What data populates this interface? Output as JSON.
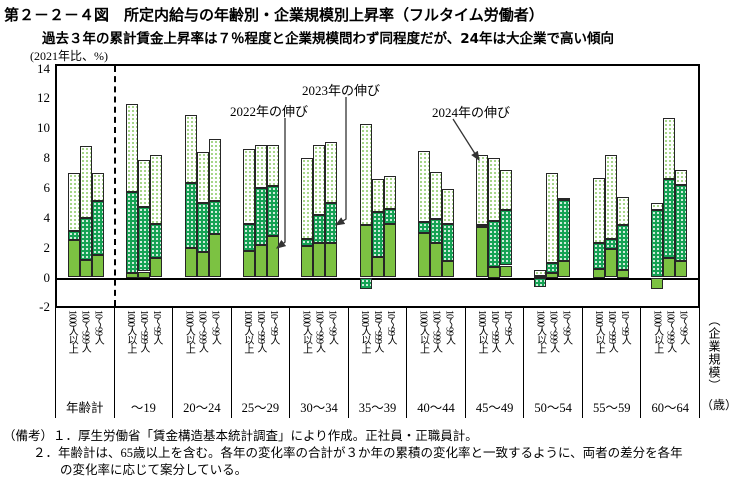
{
  "figure": {
    "title": "第２－２－４図　所定内給与の年齢別・企業規模別上昇率（フルタイム労働者）",
    "subtitle": "過去３年の累計賃金上昇率は７％程度と企業規模問わず同程度だが、24年は大企業で高い傾向",
    "unit_label": "(2021年比、%)",
    "right_axis_label": "（企業規模）",
    "right_axis_unit": "（歳）"
  },
  "chart_data": {
    "type": "bar",
    "stacked": true,
    "ylabel": "(2021年比、%)",
    "ylim": [
      -2,
      14
    ],
    "ytick_interval": 2,
    "yticks": [
      14,
      12,
      10,
      8,
      6,
      4,
      2,
      0,
      -2
    ],
    "grid": false,
    "series_names": [
      "2022年の伸び",
      "2023年の伸び",
      "2024年の伸び"
    ],
    "bar_labels": [
      "1000人以上",
      "100～999人",
      "10～99人"
    ],
    "categories": [
      "年齢計",
      "～19",
      "20～24",
      "25～29",
      "30～34",
      "35～39",
      "40～44",
      "45～49",
      "50～54",
      "55～59",
      "60～64"
    ],
    "groups": [
      {
        "category": "年齢計",
        "values": [
          [
            2.5,
            0.6,
            3.9
          ],
          [
            1.2,
            2.8,
            4.8
          ],
          [
            1.5,
            3.6,
            1.9
          ]
        ]
      },
      {
        "category": "～19",
        "values": [
          [
            0.3,
            5.4,
            5.9
          ],
          [
            0.4,
            4.3,
            3.2
          ],
          [
            1.3,
            2.3,
            4.6
          ]
        ]
      },
      {
        "category": "20～24",
        "values": [
          [
            2.0,
            4.3,
            4.6
          ],
          [
            1.7,
            3.3,
            3.4
          ],
          [
            2.9,
            2.2,
            4.2
          ]
        ]
      },
      {
        "category": "25～29",
        "values": [
          [
            1.8,
            1.8,
            5.0
          ],
          [
            2.2,
            3.8,
            2.9
          ],
          [
            2.8,
            3.3,
            2.8
          ]
        ]
      },
      {
        "category": "30～34",
        "values": [
          [
            2.1,
            0.5,
            5.4
          ],
          [
            2.3,
            1.9,
            4.7
          ],
          [
            2.3,
            2.7,
            4.1
          ]
        ]
      },
      {
        "category": "35～39",
        "values": [
          [
            3.5,
            -0.8,
            6.8
          ],
          [
            1.4,
            3.0,
            2.2
          ],
          [
            3.6,
            1.0,
            2.2
          ]
        ]
      },
      {
        "category": "40～44",
        "values": [
          [
            3.0,
            0.7,
            4.8
          ],
          [
            2.3,
            1.6,
            3.2
          ],
          [
            1.1,
            2.5,
            2.3
          ]
        ]
      },
      {
        "category": "45～49",
        "values": [
          [
            3.4,
            0.1,
            4.7
          ],
          [
            0.7,
            3.1,
            4.2
          ],
          [
            0.8,
            3.7,
            2.7
          ]
        ]
      },
      {
        "category": "50～54",
        "values": [
          [
            0.1,
            -0.6,
            0.4
          ],
          [
            0.3,
            0.7,
            6.0
          ],
          [
            1.1,
            4.1,
            0.1
          ]
        ]
      },
      {
        "category": "55～59",
        "values": [
          [
            0.6,
            1.7,
            4.4
          ],
          [
            1.9,
            0.7,
            5.6
          ],
          [
            0.5,
            3.0,
            1.9
          ]
        ]
      },
      {
        "category": "60～64",
        "values": [
          [
            -0.8,
            4.5,
            0.5
          ],
          [
            1.3,
            5.3,
            4.1
          ],
          [
            1.1,
            5.1,
            1.0
          ]
        ]
      }
    ],
    "annotations": [
      {
        "label": "2022年の伸び",
        "points_to": "25～29 10～99人 2022セグメント"
      },
      {
        "label": "2023年の伸び",
        "points_to": "30～34 10～99人 2023セグメント"
      },
      {
        "label": "2024年の伸び",
        "points_to": "45～49 1000人以上 2024セグメント"
      }
    ],
    "colors": {
      "s2022": "#7CC242",
      "s2023": "#15A254",
      "s2024_dot_on_white": "#8FCB6B",
      "frame": "#000000"
    }
  },
  "notes": {
    "line1": "（備考）１．厚生労働省「賃金構造基本統計調査」により作成。正社員・正職員計。",
    "line2": "２．年齢計は、65歳以上を含む。各年の変化率の合計が３か年の累積の変化率と一致するように、両者の差分を各年",
    "line3": "の変化率に応じて案分している。"
  }
}
